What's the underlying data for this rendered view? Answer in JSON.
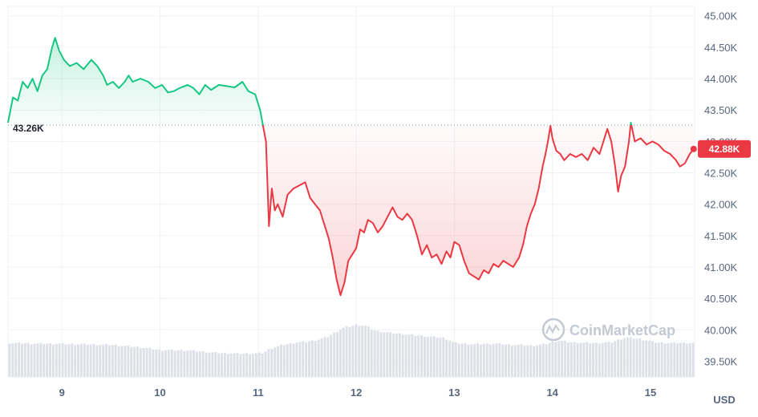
{
  "chart_data": {
    "type": "line",
    "unit": "USD",
    "reference": {
      "value": 43260,
      "label": "43.26K"
    },
    "current": {
      "value": 42880,
      "label": "42.88K"
    },
    "ylim": [
      39250,
      45150
    ],
    "y_ticks": [
      {
        "value": 45000,
        "label": "45.00K"
      },
      {
        "value": 44500,
        "label": "44.50K"
      },
      {
        "value": 44000,
        "label": "44.00K"
      },
      {
        "value": 43500,
        "label": "43.50K"
      },
      {
        "value": 43000,
        "label": "43.00K"
      },
      {
        "value": 42500,
        "label": "42.50K"
      },
      {
        "value": 42000,
        "label": "42.00K"
      },
      {
        "value": 41500,
        "label": "41.50K"
      },
      {
        "value": 41000,
        "label": "41.00K"
      },
      {
        "value": 40500,
        "label": "40.50K"
      },
      {
        "value": 40000,
        "label": "40.00K"
      },
      {
        "value": 39500,
        "label": "39.50K"
      }
    ],
    "xlim": [
      8.45,
      15.45
    ],
    "x_ticks": [
      {
        "value": 9,
        "label": "9"
      },
      {
        "value": 10,
        "label": "10"
      },
      {
        "value": 11,
        "label": "11"
      },
      {
        "value": 12,
        "label": "12"
      },
      {
        "value": 13,
        "label": "13"
      },
      {
        "value": 14,
        "label": "14"
      },
      {
        "value": 15,
        "label": "15"
      }
    ],
    "grid": true,
    "colors": {
      "above": "#16c784",
      "below": "#ea3943",
      "volume": "#dde1e7",
      "grid": "#eff2f5",
      "axis_text": "#58667e"
    },
    "watermark": "CoinMarketCap",
    "series": [
      {
        "values": [
          [
            8.45,
            43300
          ],
          [
            8.5,
            43700
          ],
          [
            8.55,
            43650
          ],
          [
            8.6,
            43950
          ],
          [
            8.65,
            43850
          ],
          [
            8.7,
            44000
          ],
          [
            8.75,
            43800
          ],
          [
            8.8,
            44050
          ],
          [
            8.85,
            44150
          ],
          [
            8.9,
            44500
          ],
          [
            8.93,
            44650
          ],
          [
            8.97,
            44450
          ],
          [
            9.02,
            44300
          ],
          [
            9.08,
            44200
          ],
          [
            9.15,
            44250
          ],
          [
            9.22,
            44150
          ],
          [
            9.3,
            44300
          ],
          [
            9.36,
            44200
          ],
          [
            9.42,
            44050
          ],
          [
            9.46,
            43900
          ],
          [
            9.52,
            43950
          ],
          [
            9.58,
            43850
          ],
          [
            9.64,
            43950
          ],
          [
            9.68,
            44050
          ],
          [
            9.72,
            43950
          ],
          [
            9.8,
            44000
          ],
          [
            9.88,
            43950
          ],
          [
            9.95,
            43850
          ],
          [
            10.02,
            43900
          ],
          [
            10.08,
            43780
          ],
          [
            10.14,
            43800
          ],
          [
            10.2,
            43850
          ],
          [
            10.28,
            43900
          ],
          [
            10.34,
            43850
          ],
          [
            10.4,
            43750
          ],
          [
            10.46,
            43900
          ],
          [
            10.52,
            43820
          ],
          [
            10.6,
            43900
          ],
          [
            10.68,
            43880
          ],
          [
            10.76,
            43860
          ],
          [
            10.84,
            43950
          ],
          [
            10.9,
            43800
          ],
          [
            10.97,
            43750
          ],
          [
            11.02,
            43500
          ],
          [
            11.05,
            43250
          ],
          [
            11.08,
            43000
          ],
          [
            11.11,
            41650
          ],
          [
            11.14,
            42250
          ],
          [
            11.17,
            41900
          ],
          [
            11.2,
            42000
          ],
          [
            11.25,
            41800
          ],
          [
            11.3,
            42150
          ],
          [
            11.36,
            42250
          ],
          [
            11.42,
            42300
          ],
          [
            11.48,
            42350
          ],
          [
            11.53,
            42100
          ],
          [
            11.58,
            42000
          ],
          [
            11.63,
            41900
          ],
          [
            11.67,
            41700
          ],
          [
            11.72,
            41450
          ],
          [
            11.76,
            41150
          ],
          [
            11.8,
            40800
          ],
          [
            11.84,
            40550
          ],
          [
            11.88,
            40750
          ],
          [
            11.92,
            41100
          ],
          [
            11.96,
            41200
          ],
          [
            12.0,
            41300
          ],
          [
            12.04,
            41600
          ],
          [
            12.08,
            41550
          ],
          [
            12.12,
            41750
          ],
          [
            12.17,
            41700
          ],
          [
            12.22,
            41550
          ],
          [
            12.27,
            41650
          ],
          [
            12.32,
            41800
          ],
          [
            12.37,
            41950
          ],
          [
            12.42,
            41800
          ],
          [
            12.47,
            41750
          ],
          [
            12.52,
            41850
          ],
          [
            12.57,
            41750
          ],
          [
            12.62,
            41500
          ],
          [
            12.67,
            41200
          ],
          [
            12.72,
            41350
          ],
          [
            12.77,
            41150
          ],
          [
            12.82,
            41200
          ],
          [
            12.87,
            41050
          ],
          [
            12.92,
            41250
          ],
          [
            12.96,
            41150
          ],
          [
            13.0,
            41400
          ],
          [
            13.05,
            41350
          ],
          [
            13.1,
            41100
          ],
          [
            13.15,
            40900
          ],
          [
            13.2,
            40850
          ],
          [
            13.25,
            40800
          ],
          [
            13.3,
            40950
          ],
          [
            13.35,
            40900
          ],
          [
            13.4,
            41050
          ],
          [
            13.45,
            41000
          ],
          [
            13.5,
            41100
          ],
          [
            13.55,
            41050
          ],
          [
            13.6,
            41000
          ],
          [
            13.66,
            41150
          ],
          [
            13.7,
            41350
          ],
          [
            13.74,
            41650
          ],
          [
            13.78,
            41850
          ],
          [
            13.82,
            42000
          ],
          [
            13.86,
            42250
          ],
          [
            13.9,
            42600
          ],
          [
            13.93,
            42800
          ],
          [
            13.96,
            43050
          ],
          [
            13.98,
            43250
          ],
          [
            14.0,
            43050
          ],
          [
            14.04,
            42850
          ],
          [
            14.08,
            42800
          ],
          [
            14.12,
            42700
          ],
          [
            14.18,
            42800
          ],
          [
            14.24,
            42750
          ],
          [
            14.3,
            42800
          ],
          [
            14.36,
            42700
          ],
          [
            14.42,
            42900
          ],
          [
            14.48,
            42800
          ],
          [
            14.52,
            43000
          ],
          [
            14.56,
            43200
          ],
          [
            14.6,
            43000
          ],
          [
            14.64,
            42600
          ],
          [
            14.67,
            42200
          ],
          [
            14.7,
            42450
          ],
          [
            14.74,
            42600
          ],
          [
            14.78,
            43000
          ],
          [
            14.8,
            43300
          ],
          [
            14.84,
            43000
          ],
          [
            14.9,
            43050
          ],
          [
            14.96,
            42950
          ],
          [
            15.02,
            43000
          ],
          [
            15.08,
            42950
          ],
          [
            15.14,
            42850
          ],
          [
            15.2,
            42800
          ],
          [
            15.26,
            42700
          ],
          [
            15.3,
            42600
          ],
          [
            15.35,
            42650
          ],
          [
            15.4,
            42800
          ],
          [
            15.44,
            42880
          ]
        ]
      }
    ],
    "volume": [
      [
        8.45,
        39.79
      ],
      [
        8.8,
        39.78
      ],
      [
        9.2,
        39.77
      ],
      [
        9.5,
        39.76
      ],
      [
        9.8,
        39.72
      ],
      [
        10.0,
        39.68
      ],
      [
        10.3,
        39.67
      ],
      [
        10.6,
        39.63
      ],
      [
        10.9,
        39.62
      ],
      [
        11.05,
        39.63
      ],
      [
        11.12,
        39.7
      ],
      [
        11.25,
        39.76
      ],
      [
        11.4,
        39.8
      ],
      [
        11.55,
        39.82
      ],
      [
        11.7,
        39.88
      ],
      [
        11.85,
        40.02
      ],
      [
        12.0,
        40.08
      ],
      [
        12.1,
        40.06
      ],
      [
        12.2,
        39.98
      ],
      [
        12.35,
        39.95
      ],
      [
        12.5,
        39.93
      ],
      [
        12.7,
        39.9
      ],
      [
        12.9,
        39.87
      ],
      [
        13.0,
        39.79
      ],
      [
        13.2,
        39.77
      ],
      [
        13.4,
        39.78
      ],
      [
        13.6,
        39.76
      ],
      [
        13.8,
        39.75
      ],
      [
        13.95,
        39.78
      ],
      [
        14.05,
        39.83
      ],
      [
        14.2,
        39.8
      ],
      [
        14.4,
        39.79
      ],
      [
        14.6,
        39.8
      ],
      [
        14.75,
        39.88
      ],
      [
        14.9,
        39.85
      ],
      [
        15.05,
        39.8
      ],
      [
        15.2,
        39.79
      ],
      [
        15.45,
        39.79
      ]
    ]
  }
}
